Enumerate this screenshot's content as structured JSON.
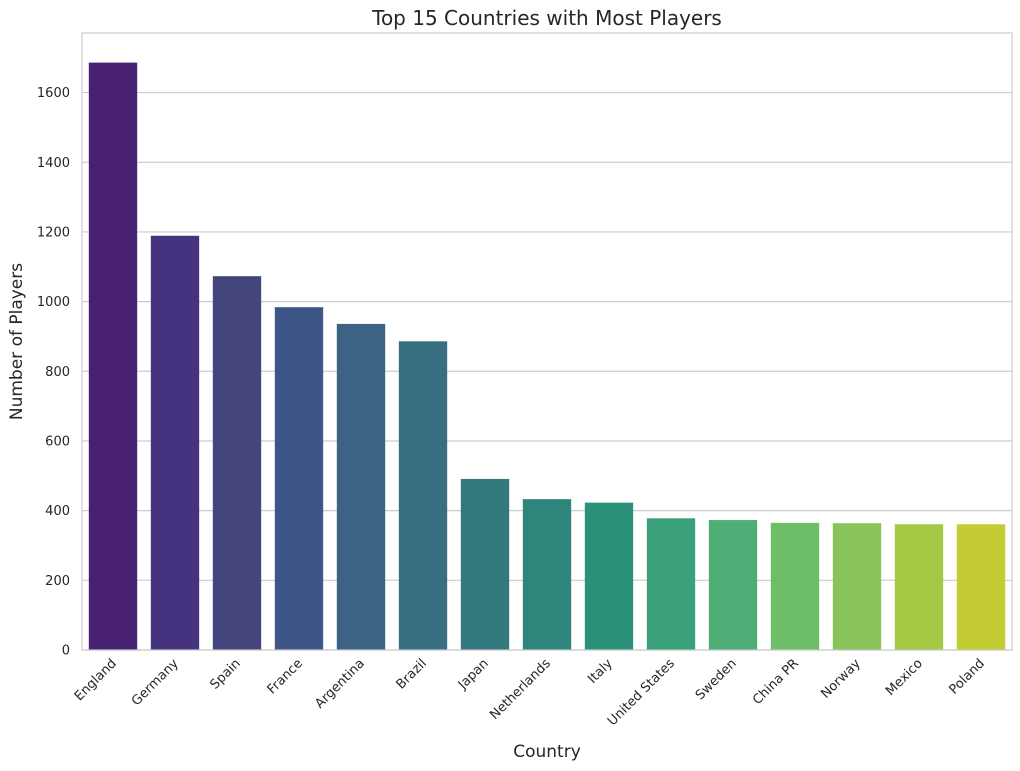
{
  "chart_data": {
    "type": "bar",
    "title": "Top 15 Countries with Most Players",
    "xlabel": "Country",
    "ylabel": "Number of Players",
    "categories": [
      "England",
      "Germany",
      "Spain",
      "France",
      "Argentina",
      "Brazil",
      "Japan",
      "Netherlands",
      "Italy",
      "United States",
      "Sweden",
      "China PR",
      "Norway",
      "Mexico",
      "Poland"
    ],
    "values": [
      1686,
      1189,
      1073,
      984,
      936,
      886,
      491,
      433,
      423,
      378,
      373,
      365,
      364,
      361,
      361
    ],
    "colors": [
      "#482173",
      "#46337f",
      "#45457e",
      "#3e5587",
      "#3c6284",
      "#376e80",
      "#31797d",
      "#2e857b",
      "#2b9179",
      "#3aa07a",
      "#4fae75",
      "#6ebd67",
      "#89c45a",
      "#a5c844",
      "#c3cc33"
    ],
    "ylim": [
      0,
      1771
    ],
    "yticks": [
      0,
      200,
      400,
      600,
      800,
      1000,
      1200,
      1400,
      1600
    ],
    "grid": "horizontal",
    "legend": "none"
  }
}
